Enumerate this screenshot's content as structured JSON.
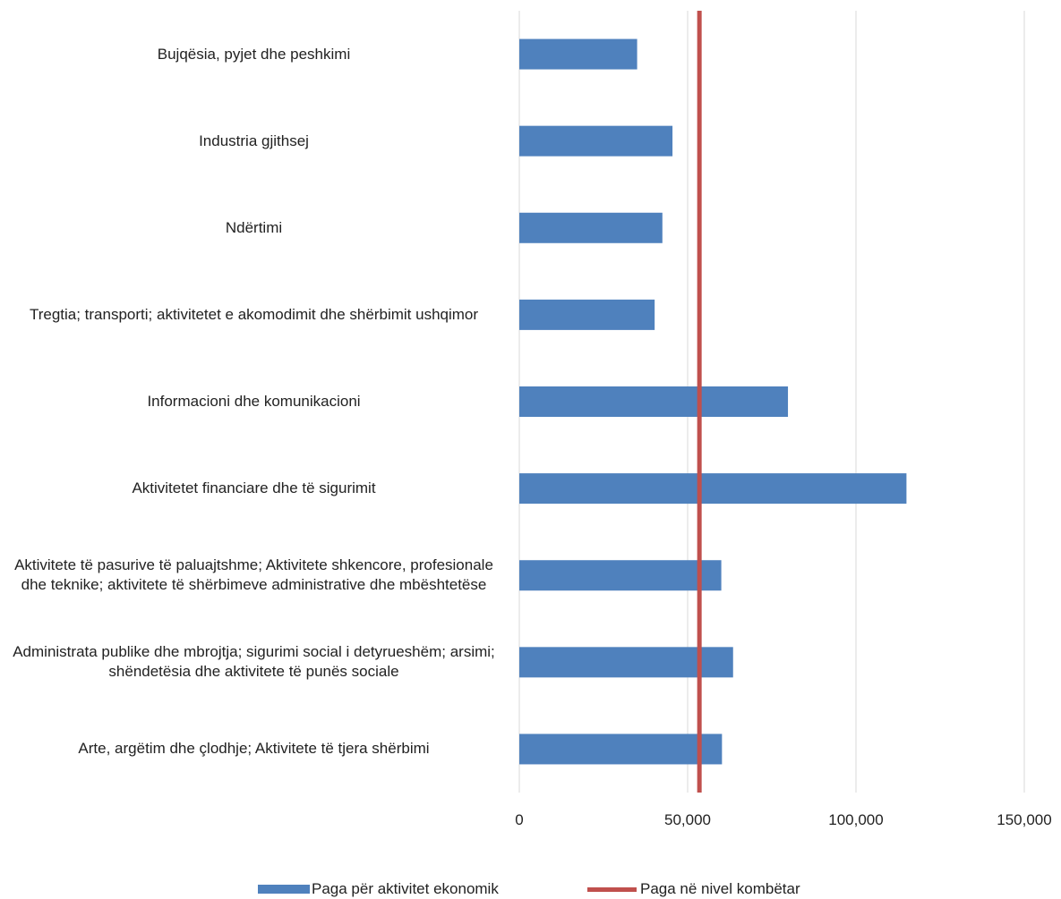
{
  "chart_data": {
    "type": "bar",
    "orientation": "horizontal",
    "categories": [
      "Bujqësia, pyjet dhe peshkimi",
      "Industria gjithsej",
      "Ndërtimi",
      "Tregtia; transporti; aktivitetet e akomodimit dhe shërbimit ushqimor",
      "Informacioni dhe komunikacioni",
      "Aktivitetet financiare dhe të sigurimit",
      "Aktivitete të pasurive të paluajtshme; Aktivitete shkencore, profesionale dhe teknike; aktivitete të shërbimeve administrative dhe mbështetëse",
      "Administrata publike dhe mbrojtja; sigurimi social i detyrueshëm; arsimi; shëndetësia dhe aktivitete të punës sociale",
      "Arte, argëtim dhe çlodhje; Aktivitete të tjera shërbimi"
    ],
    "series": [
      {
        "name": "Paga për aktivitet ekonomik",
        "type": "bar",
        "color": "#4f81bd",
        "values": [
          35000,
          45500,
          42500,
          40200,
          79800,
          115000,
          60000,
          63500,
          60200
        ]
      },
      {
        "name": "Paga në nivel kombëtar",
        "type": "line",
        "color": "#c0504d",
        "value": 53500
      }
    ],
    "x_ticks": [
      "0",
      "50,000",
      "100,000",
      "150,000"
    ],
    "xlim": [
      0,
      150000
    ],
    "grid": "vertical",
    "legend": "bottom",
    "title": "",
    "xlabel": "",
    "ylabel": ""
  }
}
